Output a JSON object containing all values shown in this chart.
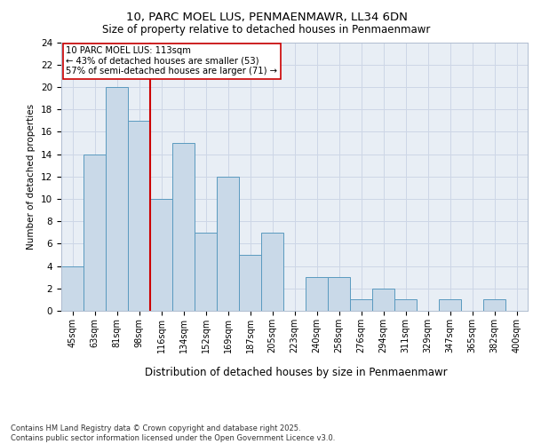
{
  "title1": "10, PARC MOEL LUS, PENMAENMAWR, LL34 6DN",
  "title2": "Size of property relative to detached houses in Penmaenmawr",
  "xlabel": "Distribution of detached houses by size in Penmaenmawr",
  "ylabel": "Number of detached properties",
  "categories": [
    "45sqm",
    "63sqm",
    "81sqm",
    "98sqm",
    "116sqm",
    "134sqm",
    "152sqm",
    "169sqm",
    "187sqm",
    "205sqm",
    "223sqm",
    "240sqm",
    "258sqm",
    "276sqm",
    "294sqm",
    "311sqm",
    "329sqm",
    "347sqm",
    "365sqm",
    "382sqm",
    "400sqm"
  ],
  "values": [
    4,
    14,
    20,
    17,
    10,
    15,
    7,
    12,
    5,
    7,
    0,
    3,
    3,
    1,
    2,
    1,
    0,
    1,
    0,
    1,
    0
  ],
  "bar_color": "#c9d9e8",
  "bar_edge_color": "#5a9abf",
  "vline_x_idx": 3.5,
  "vline_color": "#cc0000",
  "annotation_text": "10 PARC MOEL LUS: 113sqm\n← 43% of detached houses are smaller (53)\n57% of semi-detached houses are larger (71) →",
  "annotation_box_color": "#ffffff",
  "annotation_box_edge": "#cc0000",
  "ylim": [
    0,
    24
  ],
  "yticks": [
    0,
    2,
    4,
    6,
    8,
    10,
    12,
    14,
    16,
    18,
    20,
    22,
    24
  ],
  "grid_color": "#cdd6e6",
  "background_color": "#e8eef5",
  "footer_text": "Contains HM Land Registry data © Crown copyright and database right 2025.\nContains public sector information licensed under the Open Government Licence v3.0."
}
